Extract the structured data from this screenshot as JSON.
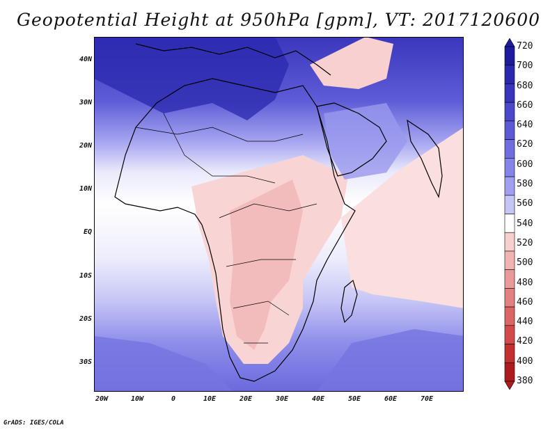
{
  "title": "Geopotential Height at 950hPa [gpm], VT: 2017120600",
  "credit": "GrADS: IGES/COLA",
  "map": {
    "lat_labels": [
      "40N",
      "30N",
      "20N",
      "10N",
      "EQ",
      "10S",
      "20S",
      "30S"
    ],
    "lon_labels": [
      "20W",
      "10W",
      "0",
      "10E",
      "20E",
      "30E",
      "40E",
      "50E",
      "60E",
      "70E"
    ]
  },
  "colorbar": {
    "labels": [
      "720",
      "700",
      "680",
      "660",
      "640",
      "620",
      "600",
      "580",
      "560",
      "540",
      "520",
      "500",
      "480",
      "460",
      "440",
      "420",
      "400",
      "380"
    ],
    "colors": [
      "#1e1b9c",
      "#2a28ad",
      "#3936bd",
      "#4a48cb",
      "#5c5ad6",
      "#6f6de0",
      "#8584e8",
      "#a1a0f0",
      "#c5c5f6",
      "#ffffff",
      "#f6cfcf",
      "#f2b3b3",
      "#ea9a9a",
      "#e38181",
      "#dc6666",
      "#d44a4a",
      "#c33030",
      "#ac1c1c"
    ]
  }
}
